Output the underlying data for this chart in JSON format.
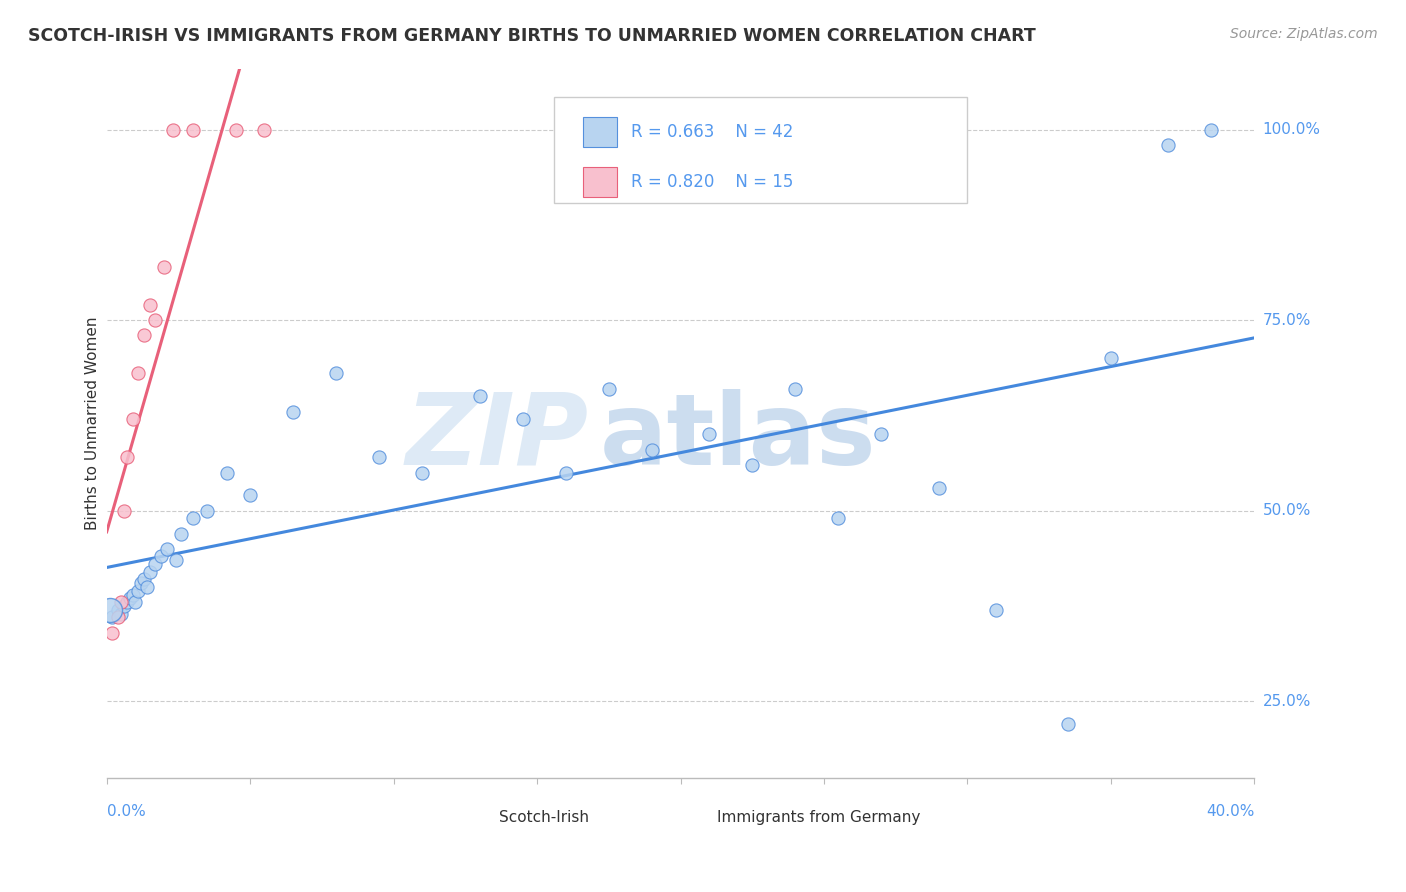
{
  "title": "SCOTCH-IRISH VS IMMIGRANTS FROM GERMANY BIRTHS TO UNMARRIED WOMEN CORRELATION CHART",
  "source": "Source: ZipAtlas.com",
  "ylabel": "Births to Unmarried Women",
  "xlim": [
    0.0,
    40.0
  ],
  "ylim": [
    15.0,
    108.0
  ],
  "yticks": [
    25.0,
    50.0,
    75.0,
    100.0
  ],
  "ytick_labels": [
    "25.0%",
    "50.0%",
    "75.0%",
    "100.0%"
  ],
  "xtick_left": "0.0%",
  "xtick_right": "40.0%",
  "blue_r": "0.663",
  "blue_n": "42",
  "pink_r": "0.820",
  "pink_n": "15",
  "blue_color": "#b8d4f0",
  "pink_color": "#f8c0ce",
  "blue_edge_color": "#5590dd",
  "pink_edge_color": "#e8607a",
  "blue_line_color": "#4488dd",
  "pink_line_color": "#e8607a",
  "watermark_zip": "ZIP",
  "watermark_atlas": "atlas",
  "background_color": "#ffffff",
  "grid_color": "#cccccc",
  "axis_color": "#5599ee",
  "text_color": "#333333",
  "source_color": "#999999",
  "blue_scatter_x": [
    0.2,
    0.4,
    0.5,
    0.6,
    0.7,
    0.8,
    0.9,
    1.0,
    1.1,
    1.2,
    1.3,
    1.4,
    1.5,
    1.7,
    1.9,
    2.1,
    2.4,
    2.6,
    3.0,
    3.5,
    4.2,
    5.0,
    6.5,
    8.0,
    9.5,
    11.0,
    13.0,
    14.5,
    16.0,
    17.5,
    19.0,
    21.0,
    22.5,
    24.0,
    25.5,
    27.0,
    29.0,
    31.0,
    33.5,
    35.0,
    37.0,
    38.5
  ],
  "blue_scatter_y": [
    36.0,
    37.0,
    36.5,
    37.5,
    38.0,
    38.5,
    39.0,
    38.0,
    39.5,
    40.5,
    41.0,
    40.0,
    42.0,
    43.0,
    44.0,
    45.0,
    43.5,
    47.0,
    49.0,
    50.0,
    55.0,
    52.0,
    63.0,
    68.0,
    57.0,
    55.0,
    65.0,
    62.0,
    55.0,
    66.0,
    58.0,
    60.0,
    56.0,
    66.0,
    49.0,
    60.0,
    53.0,
    37.0,
    22.0,
    70.0,
    98.0,
    100.0
  ],
  "blue_large_dot_x": 0.1,
  "blue_large_dot_y": 37.0,
  "pink_scatter_x": [
    0.2,
    0.4,
    0.5,
    0.6,
    0.7,
    0.9,
    1.1,
    1.3,
    1.5,
    1.7,
    2.0,
    2.3,
    3.0,
    4.5,
    5.5
  ],
  "pink_scatter_y": [
    34.0,
    36.0,
    38.0,
    50.0,
    57.0,
    62.0,
    68.0,
    73.0,
    77.0,
    75.0,
    82.0,
    100.0,
    100.0,
    100.0,
    100.0
  ]
}
